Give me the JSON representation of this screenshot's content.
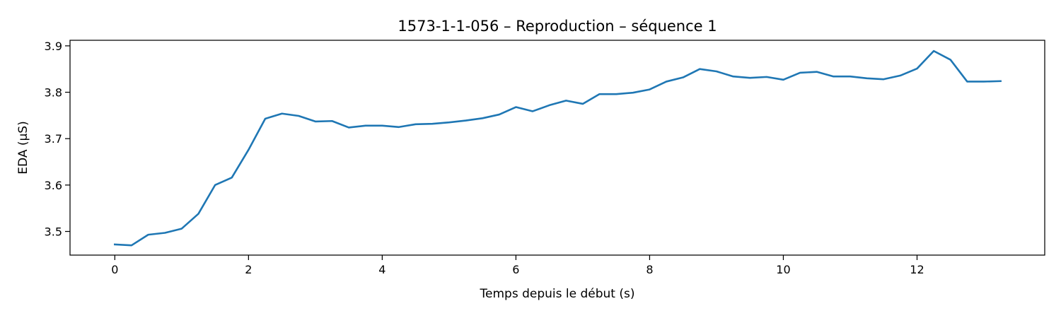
{
  "chart_data": {
    "type": "line",
    "title": "1573-1-1-056 – Reproduction – séquence 1",
    "xlabel": "Temps depuis le début (s)",
    "ylabel": "EDA (µS)",
    "xlim": [
      -0.67,
      13.91
    ],
    "ylim": [
      3.449,
      3.912
    ],
    "xticks": [
      0,
      2,
      4,
      6,
      8,
      10,
      12
    ],
    "xtick_labels": [
      "0",
      "2",
      "4",
      "6",
      "8",
      "10",
      "12"
    ],
    "yticks": [
      3.5,
      3.6,
      3.7,
      3.8,
      3.9
    ],
    "ytick_labels": [
      "3.5",
      "3.6",
      "3.7",
      "3.8",
      "3.9"
    ],
    "grid": false,
    "series": [
      {
        "color": "#1f77b4",
        "x": [
          0,
          0.25,
          0.5,
          0.75,
          1.0,
          1.25,
          1.5,
          1.75,
          2.0,
          2.25,
          2.5,
          2.75,
          3.0,
          3.25,
          3.5,
          3.75,
          4.0,
          4.25,
          4.5,
          4.75,
          5.0,
          5.25,
          5.5,
          5.75,
          6.0,
          6.25,
          6.5,
          6.75,
          7.0,
          7.25,
          7.5,
          7.75,
          8.0,
          8.25,
          8.5,
          8.75,
          9.0,
          9.25,
          9.5,
          9.75,
          10.0,
          10.25,
          10.5,
          10.75,
          11.0,
          11.25,
          11.5,
          11.75,
          12.0,
          12.25,
          12.5,
          12.75,
          13.0,
          13.25
        ],
        "y": [
          3.472,
          3.47,
          3.493,
          3.497,
          3.506,
          3.538,
          3.6,
          3.616,
          3.676,
          3.743,
          3.754,
          3.749,
          3.737,
          3.738,
          3.724,
          3.728,
          3.728,
          3.725,
          3.731,
          3.732,
          3.735,
          3.739,
          3.744,
          3.752,
          3.768,
          3.759,
          3.772,
          3.782,
          3.775,
          3.796,
          3.796,
          3.799,
          3.806,
          3.823,
          3.832,
          3.85,
          3.845,
          3.834,
          3.831,
          3.833,
          3.827,
          3.842,
          3.844,
          3.834,
          3.834,
          3.83,
          3.828,
          3.836,
          3.851,
          3.889,
          3.87,
          3.823,
          3.823,
          3.824
        ]
      }
    ]
  }
}
